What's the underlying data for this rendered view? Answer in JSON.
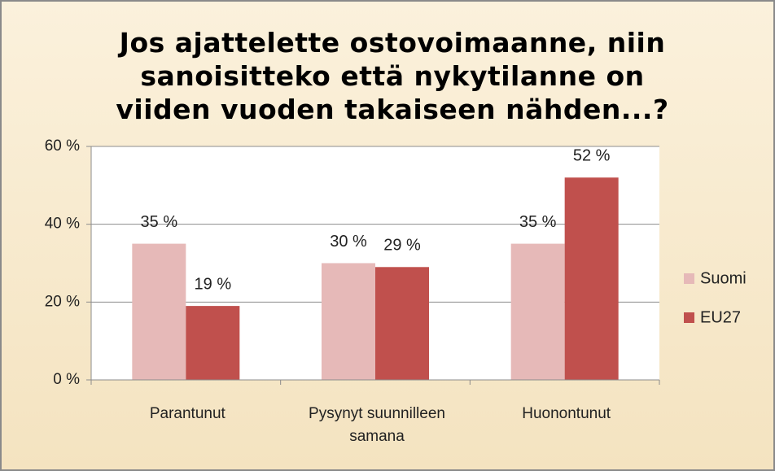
{
  "chart_data": {
    "type": "bar",
    "title": "Jos ajattelette ostovoimaanne, niin sanoisitteko että nykytilanne on viiden vuoden takaiseen nähden...?",
    "categories": [
      "Parantunut",
      "Pysynyt suunnilleen samana",
      "Huonontunut"
    ],
    "series": [
      {
        "name": "Suomi",
        "color": "#e6b9b8",
        "values": [
          35,
          30,
          35
        ],
        "value_labels": [
          "35 %",
          "30 %",
          "35 %"
        ]
      },
      {
        "name": "EU27",
        "color": "#c0504d",
        "values": [
          19,
          29,
          52
        ],
        "value_labels": [
          "19 %",
          "29 %",
          "52 %"
        ]
      }
    ],
    "ylim": [
      0,
      60
    ],
    "yticks": [
      {
        "value": 0,
        "label": "0 %"
      },
      {
        "value": 20,
        "label": "20 %"
      },
      {
        "value": 40,
        "label": "40 %"
      },
      {
        "value": 60,
        "label": "60 %"
      }
    ],
    "grid": true,
    "legend": "right"
  }
}
